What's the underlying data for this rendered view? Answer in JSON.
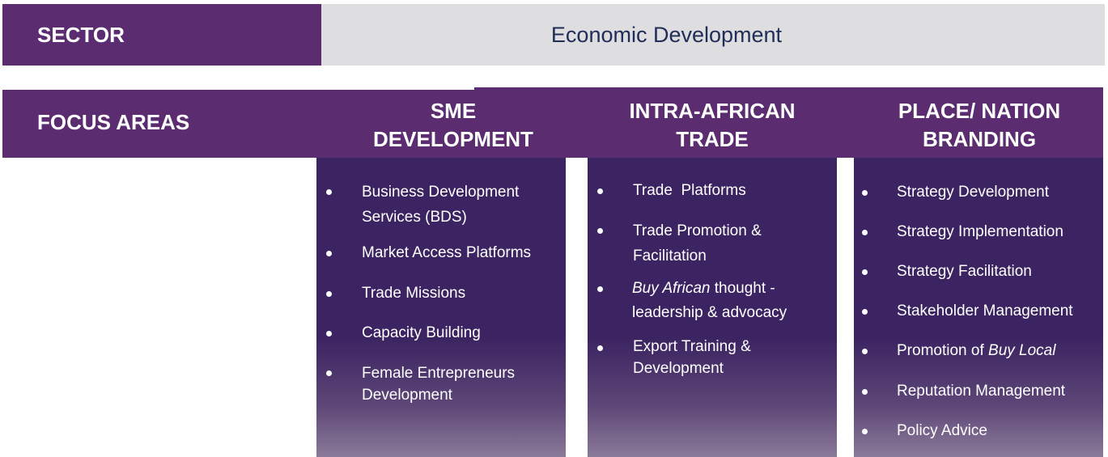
{
  "sector": {
    "label": "SECTOR",
    "value": "Economic Development"
  },
  "focus": {
    "label": "FOCUS AREAS"
  },
  "columns": [
    {
      "heading_line1": "SME",
      "heading_line2": "DEVELOPMENT",
      "items": [
        "Business Development Services (BDS)",
        "Market Access Platforms",
        "Trade Missions",
        "Capacity Building",
        "Female Entrepreneurs Development"
      ]
    },
    {
      "heading_line1": "INTRA-AFRICAN",
      "heading_line2": "TRADE",
      "items": [
        "Trade  Platforms",
        "Trade Promotion & Facilitation",
        "Buy African",
        "thought - leadership & advocacy",
        "Export Training & Development"
      ]
    },
    {
      "heading_line1": "PLACE/ NATION",
      "heading_line2": "BRANDING",
      "items": [
        "Strategy Development",
        "Strategy Implementation",
        "Strategy Facilitation",
        "Stakeholder Management",
        "Promotion of",
        "Buy Local",
        "Reputation Management",
        "Policy Advice"
      ]
    }
  ]
}
